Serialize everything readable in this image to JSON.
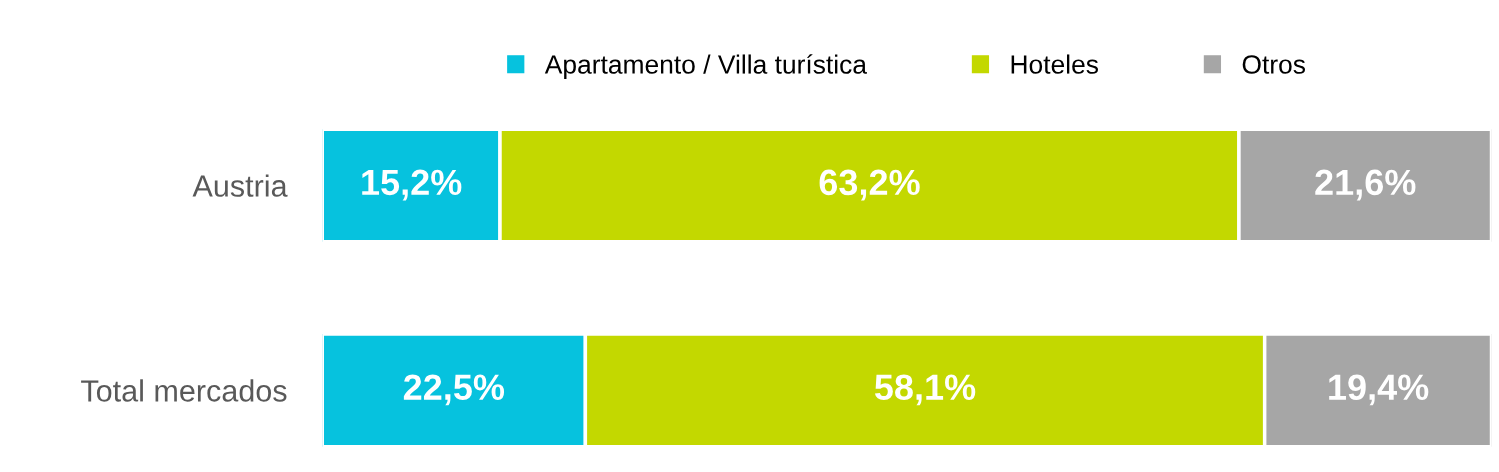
{
  "chart_data": {
    "type": "bar",
    "orientation": "horizontal",
    "stacked": true,
    "legend": "top",
    "categories": [
      "Austria",
      "Total mercados"
    ],
    "series": [
      {
        "name": "Apartamento / Villa turística",
        "color": "#06c2de",
        "values": [
          15.2,
          22.5
        ],
        "value_labels": [
          "15,2%",
          "22,5%"
        ]
      },
      {
        "name": "Hoteles",
        "color": "#c3d800",
        "values": [
          63.2,
          58.1
        ],
        "value_labels": [
          "63,2%",
          "58,1%"
        ]
      },
      {
        "name": "Otros",
        "color": "#a6a6a6",
        "values": [
          21.6,
          19.4
        ],
        "value_labels": [
          "21,6%",
          "19,4%"
        ]
      }
    ]
  }
}
